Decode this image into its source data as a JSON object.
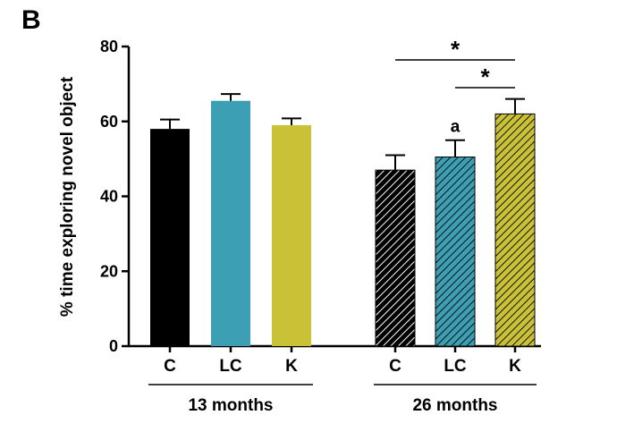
{
  "panel_label": "B",
  "chart_data": {
    "type": "bar",
    "ylabel": "% time exploring novel object",
    "xlabel": "",
    "ylim": [
      0,
      80
    ],
    "yticks": [
      0,
      20,
      40,
      60,
      80
    ],
    "grid": false,
    "groups": [
      {
        "label": "13 months",
        "categories": [
          "C",
          "LC",
          "K"
        ],
        "values": [
          58,
          65.5,
          59
        ],
        "errors": [
          2.5,
          1.8,
          1.8
        ],
        "colors": [
          "#000000",
          "#3c9fb4",
          "#c9c237"
        ],
        "hatched": false
      },
      {
        "label": "26 months",
        "categories": [
          "C",
          "LC",
          "K"
        ],
        "values": [
          47,
          50.5,
          62
        ],
        "errors": [
          4,
          4.5,
          4
        ],
        "colors": [
          "#000000",
          "#3c9fb4",
          "#c9c237"
        ],
        "hatched": true
      }
    ],
    "annotations": [
      {
        "text": "a",
        "group": 1,
        "bar": 1
      },
      {
        "text": "*",
        "group": 1,
        "from": 0,
        "to": 2,
        "level": 1
      },
      {
        "text": "*",
        "group": 1,
        "from": 1,
        "to": 2,
        "level": 0
      }
    ]
  }
}
